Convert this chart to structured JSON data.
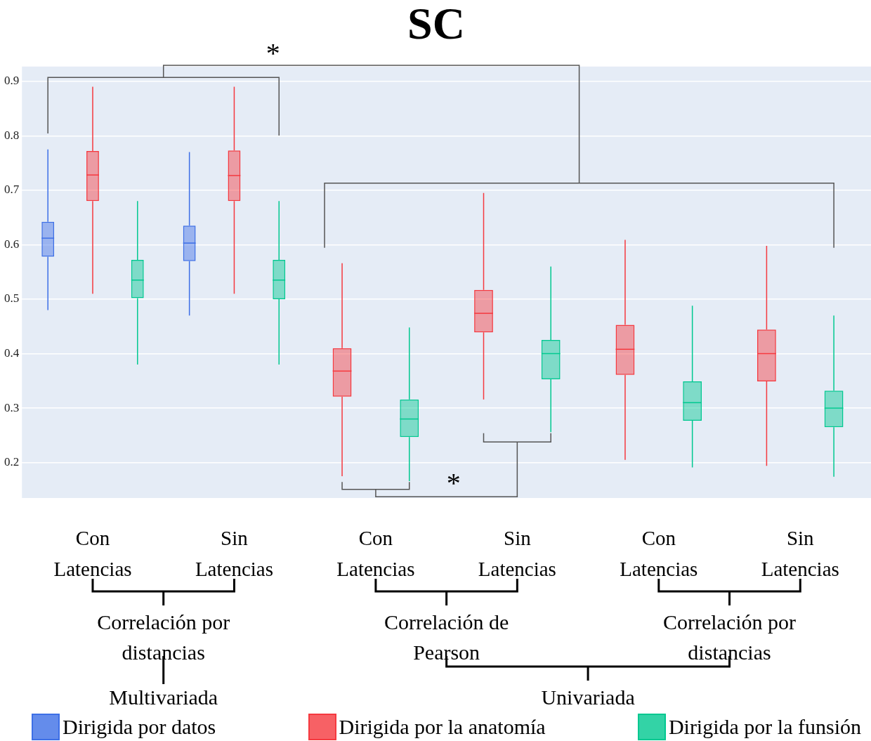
{
  "chart_data": {
    "type": "box",
    "title": "SC",
    "categories": [
      "Con Latencias",
      "Sin Latencias",
      "Con Latencias",
      "Sin Latencias",
      "Con Latencias",
      "Sin Latencias"
    ],
    "series": [
      {
        "name": "Dirigida por datos",
        "color": "#3d6fe6",
        "boxes": [
          {
            "low": 0.48,
            "q1": 0.578,
            "median": 0.612,
            "q3": 0.642,
            "high": 0.775
          },
          {
            "low": 0.47,
            "q1": 0.57,
            "median": 0.603,
            "q3": 0.635,
            "high": 0.77
          },
          null,
          null,
          null,
          null
        ]
      },
      {
        "name": "Dirigida por la anatomía",
        "color": "#f5393f",
        "boxes": [
          {
            "low": 0.51,
            "q1": 0.68,
            "median": 0.728,
            "q3": 0.772,
            "high": 0.89
          },
          {
            "low": 0.51,
            "q1": 0.68,
            "median": 0.727,
            "q3": 0.773,
            "high": 0.89
          },
          {
            "low": 0.175,
            "q1": 0.321,
            "median": 0.368,
            "q3": 0.41,
            "high": 0.566
          },
          {
            "low": 0.316,
            "q1": 0.439,
            "median": 0.474,
            "q3": 0.517,
            "high": 0.695
          },
          {
            "low": 0.205,
            "q1": 0.361,
            "median": 0.408,
            "q3": 0.453,
            "high": 0.609
          },
          {
            "low": 0.194,
            "q1": 0.349,
            "median": 0.4,
            "q3": 0.444,
            "high": 0.598
          }
        ]
      },
      {
        "name": "Dirigida por la funsión",
        "color": "#00c890",
        "boxes": [
          {
            "low": 0.38,
            "q1": 0.502,
            "median": 0.535,
            "q3": 0.572,
            "high": 0.68
          },
          {
            "low": 0.38,
            "q1": 0.5,
            "median": 0.535,
            "q3": 0.572,
            "high": 0.68
          },
          {
            "low": 0.166,
            "q1": 0.247,
            "median": 0.28,
            "q3": 0.316,
            "high": 0.448
          },
          {
            "low": 0.256,
            "q1": 0.353,
            "median": 0.4,
            "q3": 0.425,
            "high": 0.56
          },
          {
            "low": 0.191,
            "q1": 0.277,
            "median": 0.31,
            "q3": 0.349,
            "high": 0.488
          },
          {
            "low": 0.174,
            "q1": 0.265,
            "median": 0.3,
            "q3": 0.332,
            "high": 0.47
          }
        ]
      }
    ],
    "ylim": [
      0.135,
      0.927
    ],
    "yticks": [
      0.2,
      0.3,
      0.4,
      0.5,
      0.6,
      0.7,
      0.8,
      0.9
    ],
    "grid": "y",
    "legend": "bottom",
    "annotations": [
      "*",
      "*",
      "Correlación por distancias",
      "Correlación de Pearson",
      "Correlación por distancias",
      "Multivariada",
      "Univariada"
    ]
  }
}
